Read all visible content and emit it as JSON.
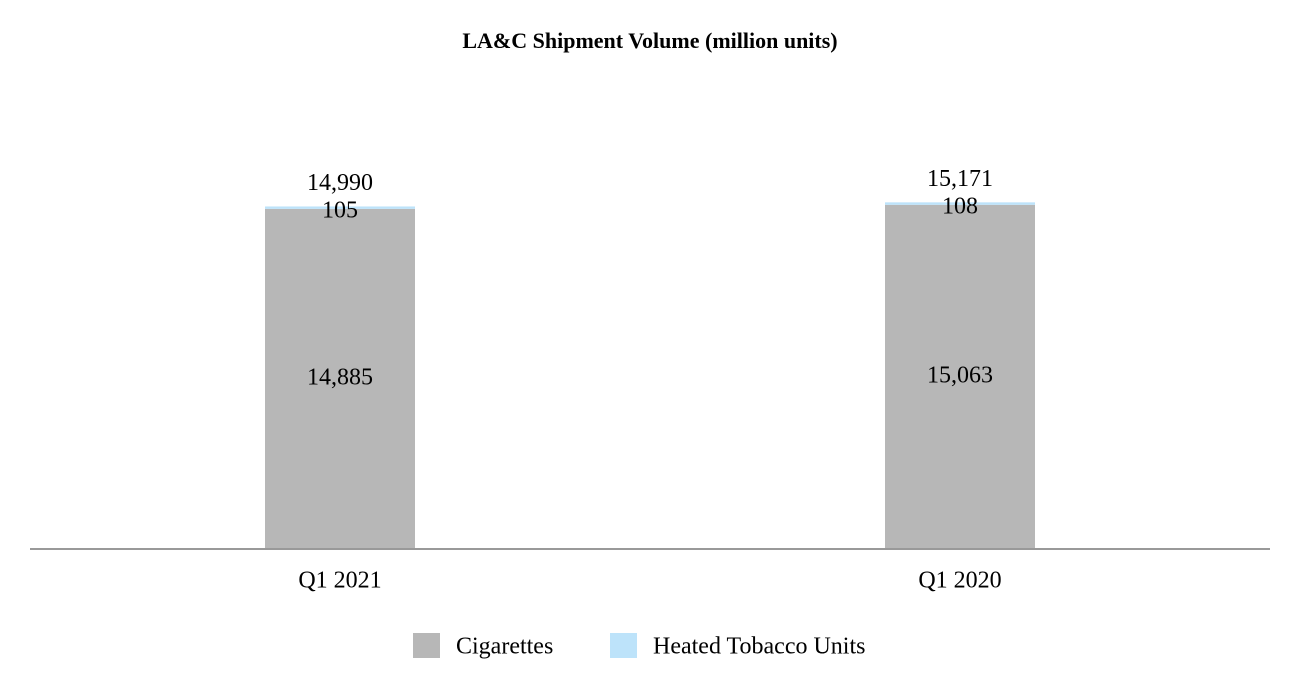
{
  "chart_data": {
    "type": "stacked_bar",
    "title": "LA&C Shipment Volume (million units)",
    "categories": [
      "Q1 2021",
      "Q1 2020"
    ],
    "series": [
      {
        "name": "Cigarettes",
        "color": "#b7b7b7",
        "values": [
          14885,
          15063
        ],
        "value_labels": [
          "14,885",
          "15,063"
        ]
      },
      {
        "name": "Heated Tobacco Units",
        "color": "#bde3fa",
        "values": [
          105,
          108
        ],
        "value_labels": [
          "105",
          "108"
        ]
      }
    ],
    "totals": {
      "values": [
        14990,
        15171
      ],
      "value_labels": [
        "14,990",
        "15,171"
      ]
    },
    "ylim": [
      0,
      20000
    ],
    "legend": "bottom"
  }
}
